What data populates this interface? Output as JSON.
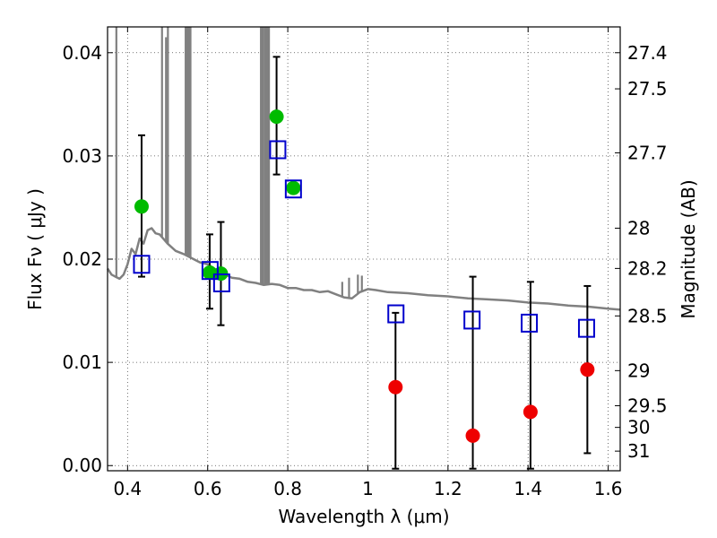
{
  "chart_data": {
    "type": "scatter",
    "xlabel": "Wavelength  λ (μm)",
    "ylabel": "Flux  Fν  ( μJy )",
    "ylabel_right": "Magnitude (AB)",
    "xlim": [
      0.35,
      1.63
    ],
    "ylim": [
      -0.0005,
      0.0425
    ],
    "x_ticks": [
      0.4,
      0.6,
      0.8,
      1.0,
      1.2,
      1.4,
      1.6
    ],
    "x_tick_labels": [
      "0.4",
      "0.6",
      "0.8",
      "1",
      "1.2",
      "1.4",
      "1.6"
    ],
    "y_ticks": [
      0.0,
      0.01,
      0.02,
      0.03,
      0.04
    ],
    "y_tick_labels": [
      "0.00",
      "0.01",
      "0.02",
      "0.03",
      "0.04"
    ],
    "mag_ticks": [
      {
        "label": "27.4",
        "flux": 0.04
      },
      {
        "label": "27.5",
        "flux": 0.0365
      },
      {
        "label": "27.7",
        "flux": 0.0303
      },
      {
        "label": "28",
        "flux": 0.023
      },
      {
        "label": "28.2",
        "flux": 0.0191
      },
      {
        "label": "28.5",
        "flux": 0.0145
      },
      {
        "label": "29",
        "flux": 0.0092
      },
      {
        "label": "29.5",
        "flux": 0.0058
      },
      {
        "label": "30",
        "flux": 0.0037
      },
      {
        "label": "31",
        "flux": 0.0014
      }
    ],
    "grid": true,
    "series": [
      {
        "name": "SED model",
        "style": "line",
        "color": "#808080",
        "x": [
          0.35,
          0.36,
          0.37,
          0.38,
          0.39,
          0.4,
          0.41,
          0.42,
          0.43,
          0.44,
          0.45,
          0.46,
          0.47,
          0.48,
          0.5,
          0.52,
          0.54,
          0.56,
          0.58,
          0.6,
          0.62,
          0.64,
          0.66,
          0.68,
          0.7,
          0.72,
          0.74,
          0.76,
          0.78,
          0.8,
          0.82,
          0.84,
          0.86,
          0.88,
          0.9,
          0.92,
          0.94,
          0.96,
          0.98,
          1.0,
          1.02,
          1.05,
          1.1,
          1.15,
          1.2,
          1.25,
          1.3,
          1.35,
          1.4,
          1.45,
          1.5,
          1.55,
          1.6,
          1.63
        ],
        "y": [
          0.0191,
          0.0185,
          0.0183,
          0.0181,
          0.0185,
          0.0195,
          0.021,
          0.0205,
          0.022,
          0.0215,
          0.0228,
          0.023,
          0.0225,
          0.0224,
          0.0215,
          0.0208,
          0.0205,
          0.0201,
          0.0197,
          0.0195,
          0.019,
          0.0186,
          0.0182,
          0.0181,
          0.0178,
          0.0177,
          0.0175,
          0.0176,
          0.0175,
          0.0172,
          0.0172,
          0.017,
          0.017,
          0.0168,
          0.0169,
          0.0166,
          0.0163,
          0.0162,
          0.0168,
          0.0171,
          0.017,
          0.0168,
          0.0167,
          0.0165,
          0.0164,
          0.0162,
          0.0161,
          0.016,
          0.0158,
          0.0157,
          0.0155,
          0.0154,
          0.0152,
          0.0151
        ]
      },
      {
        "name": "SED emission lines",
        "style": "spikes",
        "color": "#808080",
        "x": [
          0.372,
          0.486,
          0.496,
          0.5007,
          0.545,
          0.548,
          0.552,
          0.555,
          0.557,
          0.733,
          0.737,
          0.742,
          0.746,
          0.75,
          0.753,
          0.936,
          0.953,
          0.975,
          0.985
        ],
        "y": [
          0.0425,
          0.0425,
          0.0415,
          0.0425,
          0.0425,
          0.0425,
          0.0425,
          0.0425,
          0.0425,
          0.0425,
          0.0425,
          0.0425,
          0.0425,
          0.0425,
          0.0425,
          0.0178,
          0.0182,
          0.0185,
          0.0184
        ]
      },
      {
        "name": "Observed (green)",
        "style": "marker-circle",
        "color": "#00bb00",
        "x": [
          0.435,
          0.605,
          0.633,
          0.772,
          0.814
        ],
        "y": [
          0.0251,
          0.0187,
          0.0186,
          0.0338,
          0.0269
        ]
      },
      {
        "name": "Observed (red)",
        "style": "marker-circle",
        "color": "#ee0000",
        "x": [
          1.069,
          1.262,
          1.406,
          1.548
        ],
        "y": [
          0.0076,
          0.0029,
          0.0052,
          0.0093
        ]
      },
      {
        "name": "Model photometry",
        "style": "marker-square",
        "color": "#0000cc",
        "x": [
          0.435,
          0.606,
          0.635,
          0.775,
          0.814,
          1.07,
          1.26,
          1.403,
          1.546
        ],
        "y": [
          0.0195,
          0.0189,
          0.0177,
          0.0306,
          0.0268,
          0.0147,
          0.0141,
          0.0138,
          0.0133
        ]
      },
      {
        "name": "Error bars",
        "style": "errorbar",
        "color": "#000000",
        "x": [
          0.435,
          0.605,
          0.633,
          0.772,
          1.069,
          1.262,
          1.406,
          1.548
        ],
        "low": [
          0.0183,
          0.0152,
          0.0136,
          0.0282,
          -0.0003,
          -0.0003,
          -0.0003,
          0.0012
        ],
        "high": [
          0.032,
          0.0224,
          0.0236,
          0.0396,
          0.0148,
          0.0183,
          0.0178,
          0.0174
        ]
      }
    ]
  }
}
